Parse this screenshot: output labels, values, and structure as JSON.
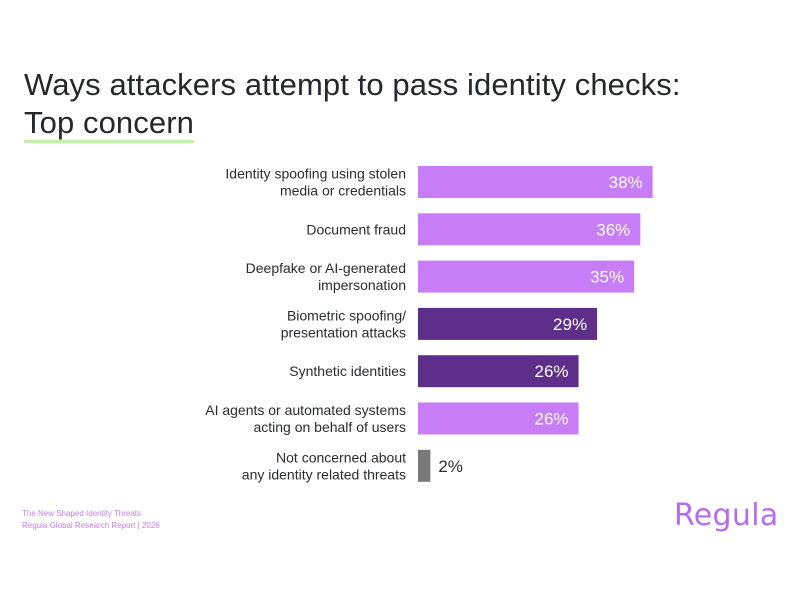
{
  "title": {
    "line1": "Ways attackers attempt to pass identity checks:",
    "line2": "Top concern"
  },
  "chart_data": {
    "type": "bar",
    "orientation": "horizontal",
    "title": "Ways attackers attempt to pass identity checks: Top concern",
    "unit": "%",
    "xlim": [
      0,
      40
    ],
    "grid": false,
    "legend": "none",
    "categories": [
      [
        "Identity spoofing using stolen",
        "media or credentials"
      ],
      [
        "Document fraud"
      ],
      [
        "Deepfake or AI-generated",
        "impersonation"
      ],
      [
        "Biometric spoofing/",
        "presentation attacks"
      ],
      [
        "Synthetic identities"
      ],
      [
        "AI agents or automated systems",
        "acting on behalf of users"
      ],
      [
        "Not concerned about",
        "any identity related threats"
      ]
    ],
    "values": [
      38,
      36,
      35,
      29,
      26,
      26,
      2
    ],
    "value_labels": [
      "38%",
      "36%",
      "35%",
      "29%",
      "26%",
      "26%",
      "2%"
    ],
    "bar_colors": [
      "#c77df6",
      "#c77df6",
      "#c77df6",
      "#5e2f8a",
      "#5e2f8a",
      "#c77df6",
      "#7a7a7a"
    ],
    "label_inside": [
      true,
      true,
      true,
      true,
      true,
      true,
      false
    ]
  },
  "footer": {
    "line1": "The New Shaped Identity Threats",
    "line2": "Regula Global Research Report | 2026"
  },
  "logo": {
    "text": "Regula",
    "color": "#b66cf0"
  }
}
